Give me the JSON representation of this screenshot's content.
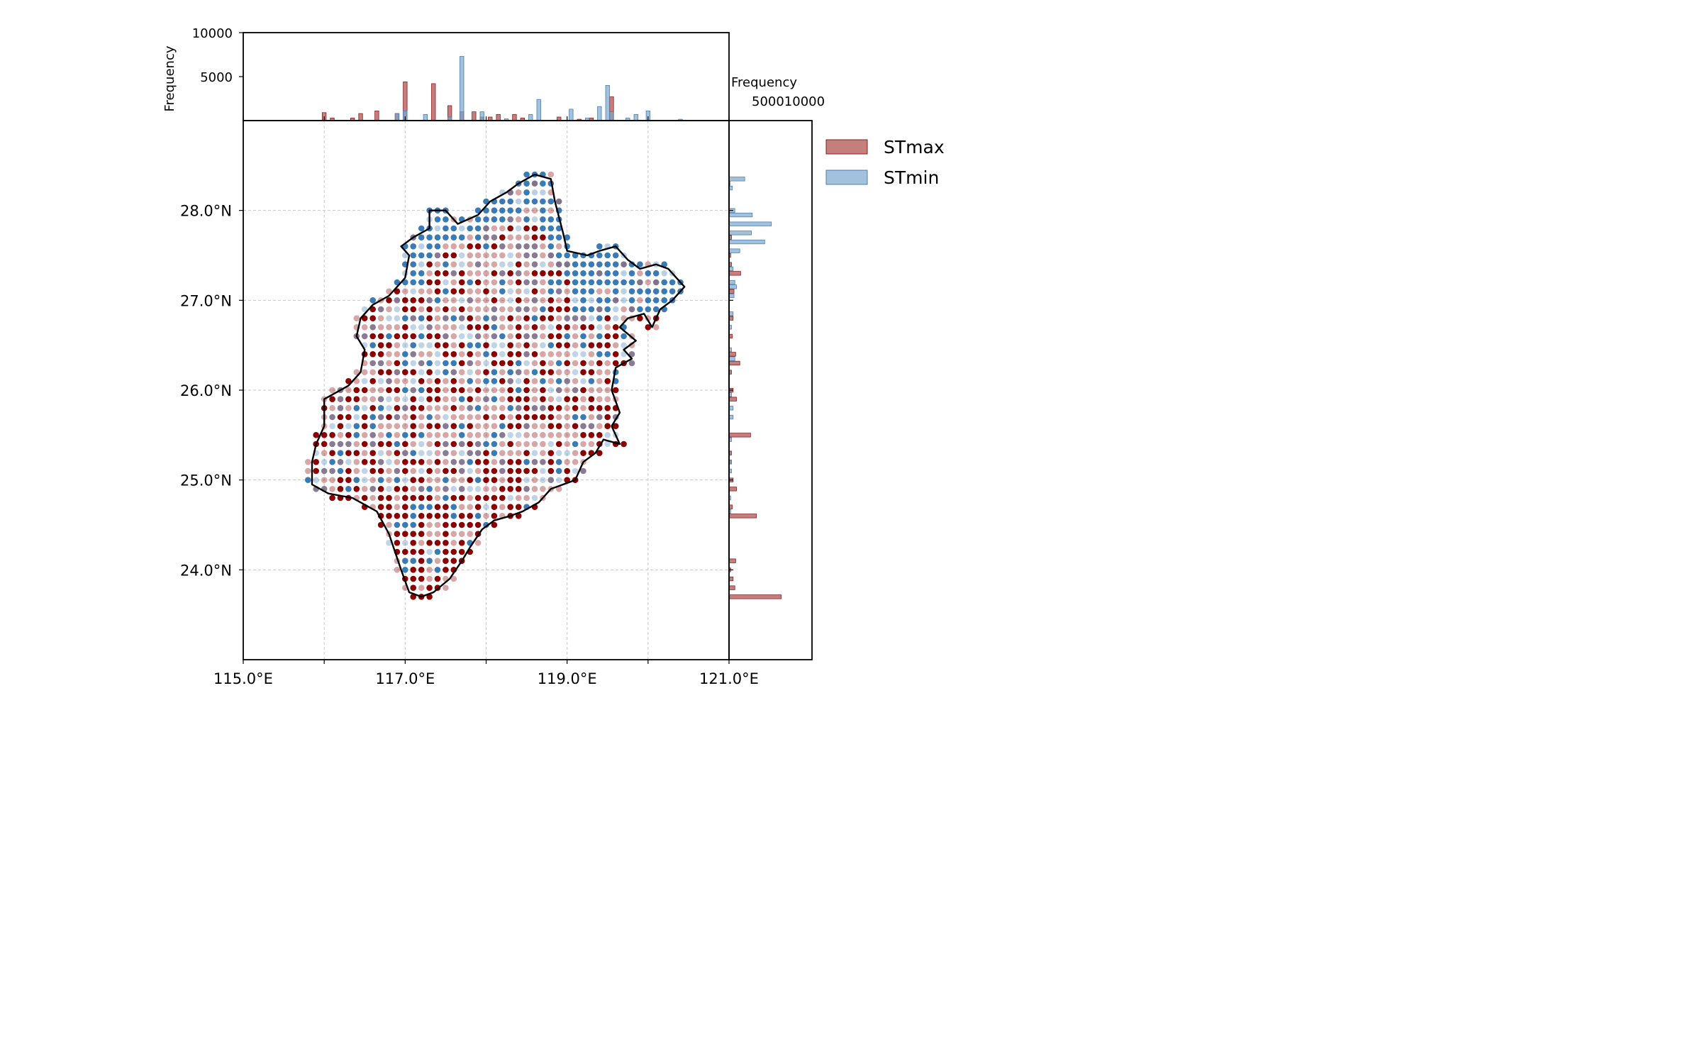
{
  "chart_data": {
    "type": "scatter",
    "title": "",
    "legend": {
      "placement": "outside-right",
      "entries": [
        "STmax",
        "STmin"
      ]
    },
    "colors": {
      "STmax": "#8b0000",
      "STmin": "#3a7ab5",
      "overlap": "#6b5a78",
      "outline": "#000000"
    },
    "axes": {
      "main": {
        "xlim": [
          115.0,
          121.0
        ],
        "ylim": [
          23.0,
          29.0
        ],
        "grid": true,
        "x_ticks": [
          {
            "v": 115,
            "label": "115.0°E"
          },
          {
            "v": 117,
            "label": "117.0°E"
          },
          {
            "v": 119,
            "label": "119.0°E"
          },
          {
            "v": 121,
            "label": "121.0°E"
          }
        ],
        "x_minor_ticks": [
          116,
          118,
          120
        ],
        "y_ticks": [
          {
            "v": 24,
            "label": "24.0°N"
          },
          {
            "v": 25,
            "label": "25.0°N"
          },
          {
            "v": 26,
            "label": "26.0°N"
          },
          {
            "v": 27,
            "label": "27.0°N"
          },
          {
            "v": 28,
            "label": "28.0°N"
          }
        ]
      },
      "top_histogram": {
        "ylabel": "Frequency",
        "ylim": [
          0,
          10000
        ],
        "y_ticks": [
          {
            "v": 5000,
            "label": "5000"
          },
          {
            "v": 10000,
            "label": "10000"
          }
        ]
      },
      "right_histogram": {
        "xlabel": "Frequency",
        "xlim": [
          0,
          10000
        ],
        "x_tick_label": "500010000"
      }
    },
    "top_histogram": {
      "STmax": [
        [
          116.0,
          900
        ],
        [
          116.1,
          300
        ],
        [
          116.35,
          300
        ],
        [
          116.45,
          800
        ],
        [
          116.65,
          1100
        ],
        [
          116.9,
          800
        ],
        [
          117.0,
          4400
        ],
        [
          117.35,
          4200
        ],
        [
          117.55,
          1700
        ],
        [
          117.7,
          1000
        ],
        [
          117.85,
          1000
        ],
        [
          117.95,
          400
        ],
        [
          118.05,
          400
        ],
        [
          118.15,
          700
        ],
        [
          118.35,
          700
        ],
        [
          118.45,
          300
        ],
        [
          118.9,
          400
        ],
        [
          119.15,
          150
        ],
        [
          119.3,
          300
        ],
        [
          119.55,
          2700
        ]
      ],
      "STmin": [
        [
          116.9,
          800
        ],
        [
          117.0,
          1100
        ],
        [
          117.25,
          700
        ],
        [
          117.55,
          400
        ],
        [
          117.7,
          7300
        ],
        [
          117.95,
          1000
        ],
        [
          118.25,
          200
        ],
        [
          118.55,
          700
        ],
        [
          118.65,
          2400
        ],
        [
          119.05,
          1300
        ],
        [
          119.25,
          300
        ],
        [
          119.4,
          1600
        ],
        [
          119.5,
          4000
        ],
        [
          119.55,
          1000
        ],
        [
          119.75,
          300
        ],
        [
          119.85,
          700
        ],
        [
          120.0,
          1100
        ],
        [
          120.4,
          150
        ]
      ]
    },
    "right_histogram": {
      "STmax": [
        [
          28.3,
          100
        ],
        [
          27.7,
          300
        ],
        [
          27.5,
          200
        ],
        [
          27.4,
          300
        ],
        [
          27.3,
          1400
        ],
        [
          27.1,
          600
        ],
        [
          26.8,
          500
        ],
        [
          26.6,
          400
        ],
        [
          26.4,
          800
        ],
        [
          26.3,
          1300
        ],
        [
          26.2,
          300
        ],
        [
          26.0,
          500
        ],
        [
          25.9,
          900
        ],
        [
          25.5,
          2600
        ],
        [
          25.3,
          300
        ],
        [
          25.2,
          300
        ],
        [
          25.0,
          500
        ],
        [
          24.9,
          900
        ],
        [
          24.7,
          400
        ],
        [
          24.6,
          3300
        ],
        [
          24.1,
          800
        ],
        [
          24.0,
          200
        ],
        [
          23.9,
          500
        ],
        [
          23.8,
          700
        ],
        [
          23.7,
          6300
        ]
      ],
      "STmin": [
        [
          28.35,
          1900
        ],
        [
          28.25,
          400
        ],
        [
          28.0,
          700
        ],
        [
          27.95,
          2800
        ],
        [
          27.85,
          5100
        ],
        [
          27.75,
          2700
        ],
        [
          27.65,
          4300
        ],
        [
          27.55,
          1300
        ],
        [
          27.35,
          500
        ],
        [
          27.2,
          700
        ],
        [
          27.15,
          900
        ],
        [
          27.05,
          600
        ],
        [
          26.85,
          500
        ],
        [
          26.7,
          300
        ],
        [
          26.45,
          300
        ],
        [
          26.35,
          700
        ],
        [
          25.95,
          300
        ],
        [
          25.8,
          500
        ],
        [
          25.7,
          500
        ],
        [
          25.45,
          300
        ],
        [
          25.2,
          300
        ],
        [
          25.1,
          300
        ],
        [
          24.8,
          200
        ],
        [
          24.65,
          200
        ]
      ]
    },
    "grid_points": {
      "spacing_deg": 0.1,
      "x_range": [
        115.8,
        120.4
      ],
      "y_range": [
        23.7,
        28.4
      ],
      "classes": {
        "STmax": "dark red, opaque",
        "STmax_light": "red, semi-transparent",
        "STmin": "blue, opaque",
        "STmin_light": "blue, semi-transparent",
        "overlap": "purple-grey"
      }
    },
    "region_outline_lonlat": [
      [
        118.6,
        28.4
      ],
      [
        118.8,
        28.35
      ],
      [
        118.85,
        28.1
      ],
      [
        118.95,
        27.75
      ],
      [
        119.0,
        27.55
      ],
      [
        119.25,
        27.5
      ],
      [
        119.4,
        27.55
      ],
      [
        119.6,
        27.6
      ],
      [
        119.75,
        27.45
      ],
      [
        119.9,
        27.35
      ],
      [
        120.1,
        27.4
      ],
      [
        120.25,
        27.35
      ],
      [
        120.35,
        27.25
      ],
      [
        120.45,
        27.15
      ],
      [
        120.3,
        27.0
      ],
      [
        120.15,
        26.9
      ],
      [
        120.05,
        26.7
      ],
      [
        119.95,
        26.85
      ],
      [
        119.75,
        26.8
      ],
      [
        119.65,
        26.7
      ],
      [
        119.85,
        26.55
      ],
      [
        119.7,
        26.45
      ],
      [
        119.8,
        26.35
      ],
      [
        119.6,
        26.25
      ],
      [
        119.55,
        26.0
      ],
      [
        119.65,
        25.75
      ],
      [
        119.55,
        25.6
      ],
      [
        119.65,
        25.4
      ],
      [
        119.45,
        25.45
      ],
      [
        119.35,
        25.3
      ],
      [
        119.2,
        25.2
      ],
      [
        119.1,
        25.0
      ],
      [
        118.95,
        24.95
      ],
      [
        118.8,
        24.9
      ],
      [
        118.65,
        24.75
      ],
      [
        118.45,
        24.65
      ],
      [
        118.3,
        24.6
      ],
      [
        118.1,
        24.55
      ],
      [
        117.95,
        24.45
      ],
      [
        117.8,
        24.25
      ],
      [
        117.7,
        24.1
      ],
      [
        117.55,
        23.9
      ],
      [
        117.35,
        23.75
      ],
      [
        117.2,
        23.7
      ],
      [
        117.05,
        23.75
      ],
      [
        116.95,
        24.0
      ],
      [
        116.8,
        24.4
      ],
      [
        116.65,
        24.65
      ],
      [
        116.35,
        24.8
      ],
      [
        116.05,
        24.85
      ],
      [
        115.85,
        24.95
      ],
      [
        115.85,
        25.2
      ],
      [
        115.9,
        25.4
      ],
      [
        116.0,
        25.6
      ],
      [
        116.0,
        25.9
      ],
      [
        116.3,
        26.05
      ],
      [
        116.45,
        26.2
      ],
      [
        116.5,
        26.45
      ],
      [
        116.4,
        26.6
      ],
      [
        116.45,
        26.8
      ],
      [
        116.6,
        26.95
      ],
      [
        116.8,
        27.05
      ],
      [
        117.0,
        27.25
      ],
      [
        117.05,
        27.5
      ],
      [
        116.95,
        27.6
      ],
      [
        117.1,
        27.7
      ],
      [
        117.3,
        27.8
      ],
      [
        117.3,
        28.0
      ],
      [
        117.5,
        28.0
      ],
      [
        117.65,
        27.85
      ],
      [
        117.9,
        27.95
      ],
      [
        118.05,
        28.1
      ],
      [
        118.25,
        28.2
      ],
      [
        118.4,
        28.3
      ],
      [
        118.5,
        28.35
      ]
    ]
  }
}
